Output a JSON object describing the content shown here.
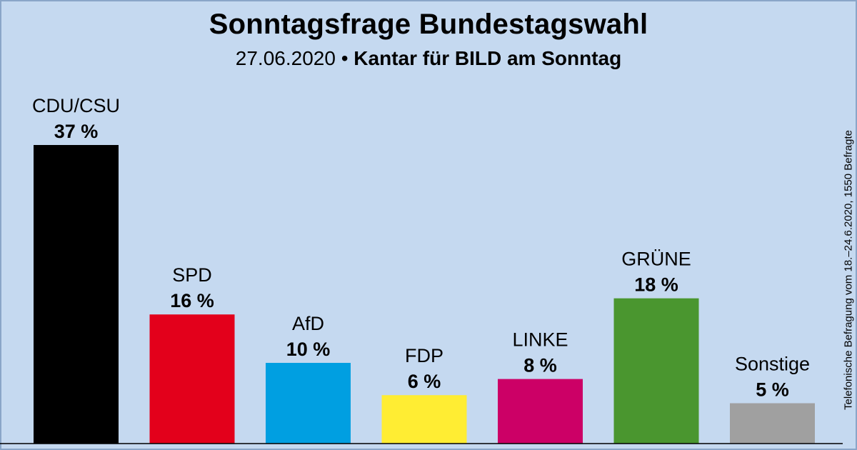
{
  "header": {
    "title": "Sonntagsfrage Bundestagswahl",
    "date": "27.06.2020",
    "separator": "•",
    "source": "Kantar für BILD am Sonntag"
  },
  "side_note": "Telefonische Befragung vom 18.–24.6.2020, 1550 Befragte",
  "chart_data": {
    "type": "bar",
    "title": "Sonntagsfrage Bundestagswahl",
    "categories": [
      "CDU/CSU",
      "SPD",
      "AfD",
      "FDP",
      "LINKE",
      "GRÜNE",
      "Sonstige"
    ],
    "values": [
      37,
      16,
      10,
      6,
      8,
      18,
      5
    ],
    "value_labels": [
      "37 %",
      "16 %",
      "10 %",
      "6 %",
      "8 %",
      "18 %",
      "5 %"
    ],
    "colors": [
      "#000000",
      "#e3001b",
      "#009fe1",
      "#ffed33",
      "#cc0066",
      "#4a962f",
      "#a0a0a0"
    ],
    "unit": "%",
    "ylim": [
      0,
      37
    ],
    "grid": false,
    "legend": "none"
  }
}
